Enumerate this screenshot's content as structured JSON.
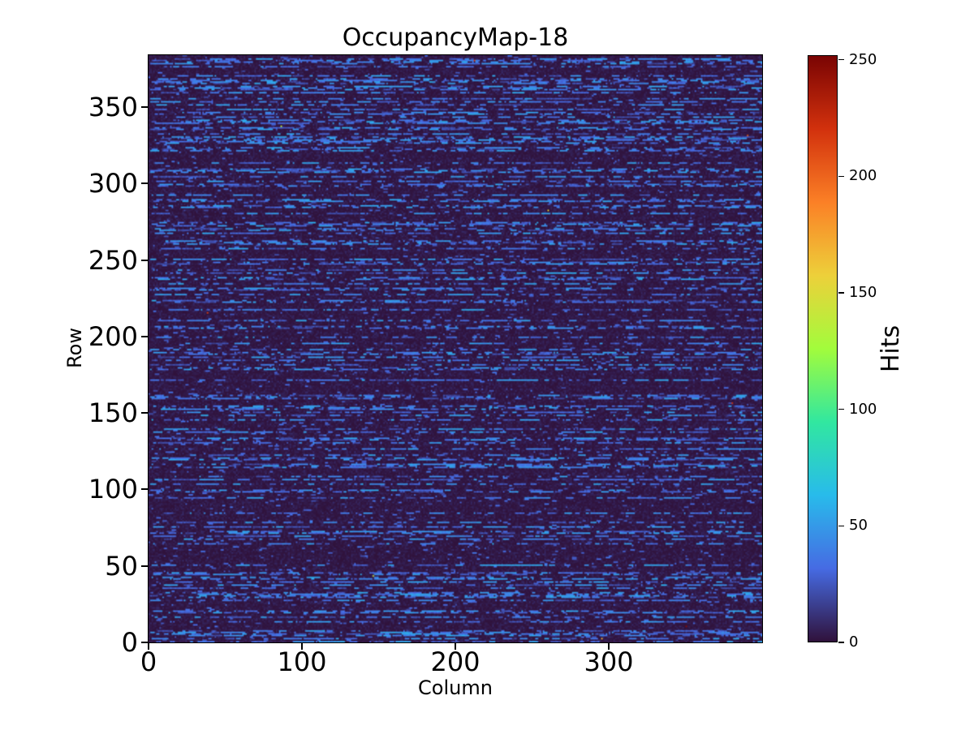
{
  "chart_data": {
    "type": "heatmap",
    "title": "OccupancyMap-18",
    "xlabel": "Column",
    "ylabel": "Row",
    "colorbar_label": "Hits",
    "n_cols": 400,
    "n_rows": 384,
    "x_range": [
      0,
      400
    ],
    "y_range": [
      0,
      384
    ],
    "x_ticks": [
      0,
      100,
      200,
      300
    ],
    "y_ticks": [
      0,
      50,
      100,
      150,
      200,
      250,
      300,
      350
    ],
    "colorbar_ticks": [
      0,
      50,
      100,
      150,
      200,
      250
    ],
    "value_range": [
      0,
      252
    ],
    "colormap": "turbo",
    "colormap_stops": [
      "#30123b",
      "#466be3",
      "#28bbeb",
      "#31e7a0",
      "#a2fc3c",
      "#edd03a",
      "#fb8026",
      "#d2310d",
      "#7a0403"
    ],
    "grid": false,
    "legend": "colorbar-right",
    "background_color": "#ffffff",
    "text_color": "#000000",
    "heatmap_background_color": "#2e1c3c",
    "dash_color_range": [
      "#3a3f8f",
      "#4f93ee"
    ],
    "pattern": {
      "description": "Pixel-detector occupancy map: near-zero (dark purple) background with horizontal dashed streaks of low hit counts (~18-54 hits, blue) on roughly 40% of rows, sparse dim specks on remaining rows, and a few isolated hot pixels up to ~252 hits.",
      "seed": 18,
      "row_active_probability": 0.4,
      "dash_value_min": 18,
      "dash_value_max": 54,
      "dash_mean_length": 4.5,
      "gap_mean_length": 5,
      "background_value_max": 10,
      "speck_probability": 0.02,
      "hot_pixel_count": 10
    }
  }
}
